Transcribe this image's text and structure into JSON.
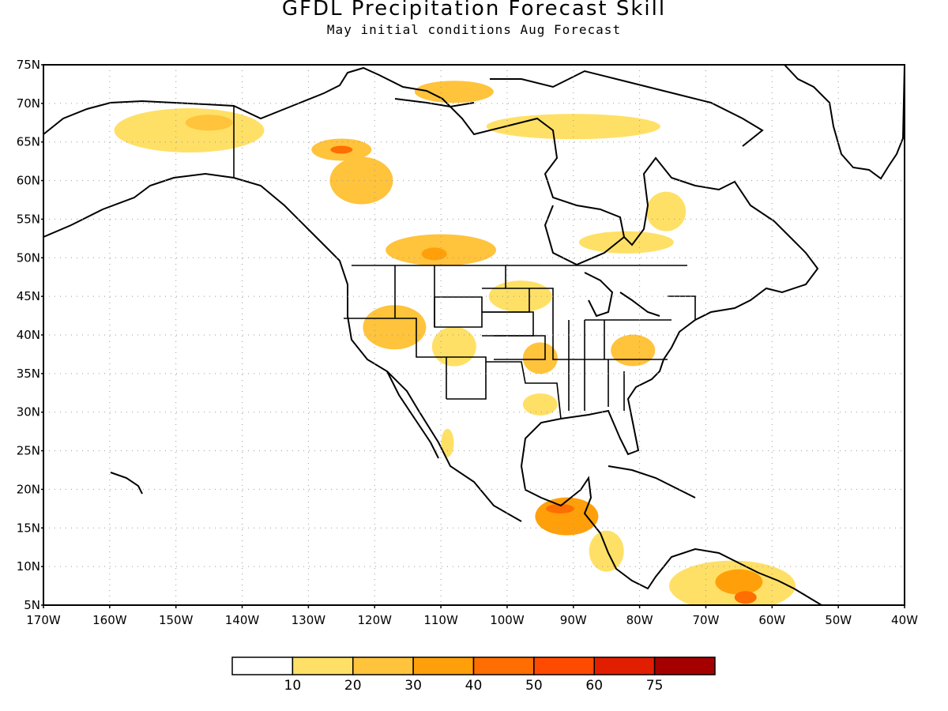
{
  "title": "GFDL Precipitation Forecast Skill",
  "subtitle": "May initial conditions  Aug Forecast",
  "map": {
    "lon_range": [
      -170,
      -40
    ],
    "lat_range": [
      5,
      75
    ],
    "lat_ticks": [
      "75N",
      "70N",
      "65N",
      "60N",
      "55N",
      "50N",
      "45N",
      "40N",
      "35N",
      "30N",
      "25N",
      "20N",
      "15N",
      "10N",
      "5N"
    ],
    "lon_ticks": [
      "170W",
      "160W",
      "150W",
      "140W",
      "130W",
      "120W",
      "110W",
      "100W",
      "90W",
      "80W",
      "70W",
      "60W",
      "50W",
      "40W"
    ],
    "grid": "dotted"
  },
  "colorbar": {
    "labels": [
      "10",
      "20",
      "30",
      "40",
      "50",
      "60",
      "75"
    ],
    "colors": [
      "#ffffff",
      "#ffe066",
      "#ffc33c",
      "#ffa00a",
      "#ff6e00",
      "#ff4b00",
      "#e11e00",
      "#a50000"
    ]
  },
  "skill_regions": [
    {
      "lon": -148,
      "lat": 66.5,
      "level": 1,
      "rx": 95,
      "ry": 28
    },
    {
      "lon": -145,
      "lat": 67.5,
      "level": 2,
      "rx": 30,
      "ry": 10
    },
    {
      "lon": -125,
      "lat": 64,
      "level": 2,
      "rx": 38,
      "ry": 14
    },
    {
      "lon": -125,
      "lat": 64,
      "level": 4,
      "rx": 14,
      "ry": 5
    },
    {
      "lon": -122,
      "lat": 60,
      "level": 2,
      "rx": 40,
      "ry": 30
    },
    {
      "lon": -110,
      "lat": 51,
      "level": 2,
      "rx": 70,
      "ry": 20
    },
    {
      "lon": -111,
      "lat": 50.5,
      "level": 3,
      "rx": 16,
      "ry": 8
    },
    {
      "lon": -108,
      "lat": 71.5,
      "level": 2,
      "rx": 50,
      "ry": 14
    },
    {
      "lon": -90,
      "lat": 67,
      "level": 1,
      "rx": 110,
      "ry": 16
    },
    {
      "lon": -82,
      "lat": 52,
      "level": 1,
      "rx": 60,
      "ry": 14
    },
    {
      "lon": -76,
      "lat": 56,
      "level": 1,
      "rx": 25,
      "ry": 25
    },
    {
      "lon": -117,
      "lat": 41,
      "level": 2,
      "rx": 40,
      "ry": 28
    },
    {
      "lon": -108,
      "lat": 38.5,
      "level": 1,
      "rx": 28,
      "ry": 25
    },
    {
      "lon": -95,
      "lat": 37,
      "level": 2,
      "rx": 22,
      "ry": 20
    },
    {
      "lon": -95,
      "lat": 31,
      "level": 1,
      "rx": 22,
      "ry": 14
    },
    {
      "lon": -81,
      "lat": 38,
      "level": 2,
      "rx": 28,
      "ry": 20
    },
    {
      "lon": -98,
      "lat": 45,
      "level": 1,
      "rx": 40,
      "ry": 20
    },
    {
      "lon": -109,
      "lat": 26,
      "level": 1,
      "rx": 8,
      "ry": 18
    },
    {
      "lon": -91,
      "lat": 16.5,
      "level": 3,
      "rx": 40,
      "ry": 24
    },
    {
      "lon": -92,
      "lat": 17.5,
      "level": 4,
      "rx": 18,
      "ry": 6
    },
    {
      "lon": -85,
      "lat": 12,
      "level": 1,
      "rx": 22,
      "ry": 26
    },
    {
      "lon": -66,
      "lat": 7.5,
      "level": 1,
      "rx": 80,
      "ry": 32
    },
    {
      "lon": -65,
      "lat": 8,
      "level": 3,
      "rx": 30,
      "ry": 16
    },
    {
      "lon": -64,
      "lat": 6,
      "level": 4,
      "rx": 14,
      "ry": 8
    }
  ]
}
